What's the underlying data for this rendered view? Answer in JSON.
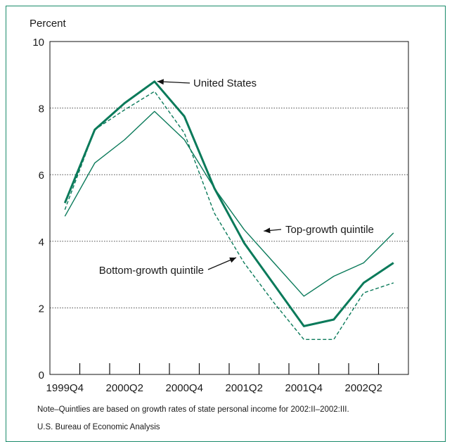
{
  "chart_data": {
    "type": "line",
    "ylabel": "Percent",
    "ylim": [
      0,
      10
    ],
    "yticks": [
      0,
      2,
      4,
      6,
      8,
      10
    ],
    "grid": "horizontal dotted at 2, 4, 6, 8",
    "x": [
      "1999Q4",
      "2000Q1",
      "2000Q2",
      "2000Q3",
      "2000Q4",
      "2001Q1",
      "2001Q2",
      "2001Q3",
      "2001Q4",
      "2002Q1",
      "2002Q2",
      "2002Q3"
    ],
    "xtick_labels": [
      {
        "at": "1999Q4",
        "label": "1999Q4"
      },
      {
        "at": "2000Q2",
        "label": "2000Q2"
      },
      {
        "at": "2000Q4",
        "label": "2000Q4"
      },
      {
        "at": "2001Q2",
        "label": "2001Q2"
      },
      {
        "at": "2001Q4",
        "label": "2001Q4"
      },
      {
        "at": "2002Q2",
        "label": "2002Q2"
      }
    ],
    "series": [
      {
        "name": "United States",
        "style": "thick",
        "color": "#0a7a5a",
        "values": [
          5.15,
          7.35,
          8.15,
          8.8,
          7.75,
          5.6,
          3.95,
          2.7,
          1.45,
          1.65,
          2.75,
          3.35
        ]
      },
      {
        "name": "Top-growth quintile",
        "style": "thin",
        "color": "#0a7a5a",
        "values": [
          4.75,
          6.35,
          7.05,
          7.9,
          7.05,
          5.6,
          4.35,
          3.35,
          2.35,
          2.95,
          3.35,
          4.25
        ]
      },
      {
        "name": "Bottom-growth quintile",
        "style": "dashed",
        "color": "#0a7a5a",
        "values": [
          4.95,
          7.35,
          7.95,
          8.5,
          7.25,
          4.85,
          3.35,
          2.15,
          1.05,
          1.05,
          2.45,
          2.75
        ]
      }
    ],
    "annotations": [
      {
        "text": "United States",
        "series": "United States",
        "at": "2000Q3"
      },
      {
        "text": "Top-growth quintile",
        "series": "Top-growth quintile",
        "at": "2001Q2"
      },
      {
        "text": "Bottom-growth quintile",
        "series": "Bottom-growth quintile",
        "at": "2001Q2"
      }
    ]
  },
  "footer": {
    "note": "Note–Quintlies are based on growth rates of state personal income for 2002:II–2002:III.",
    "source": "U.S. Bureau of Economic Analysis"
  }
}
